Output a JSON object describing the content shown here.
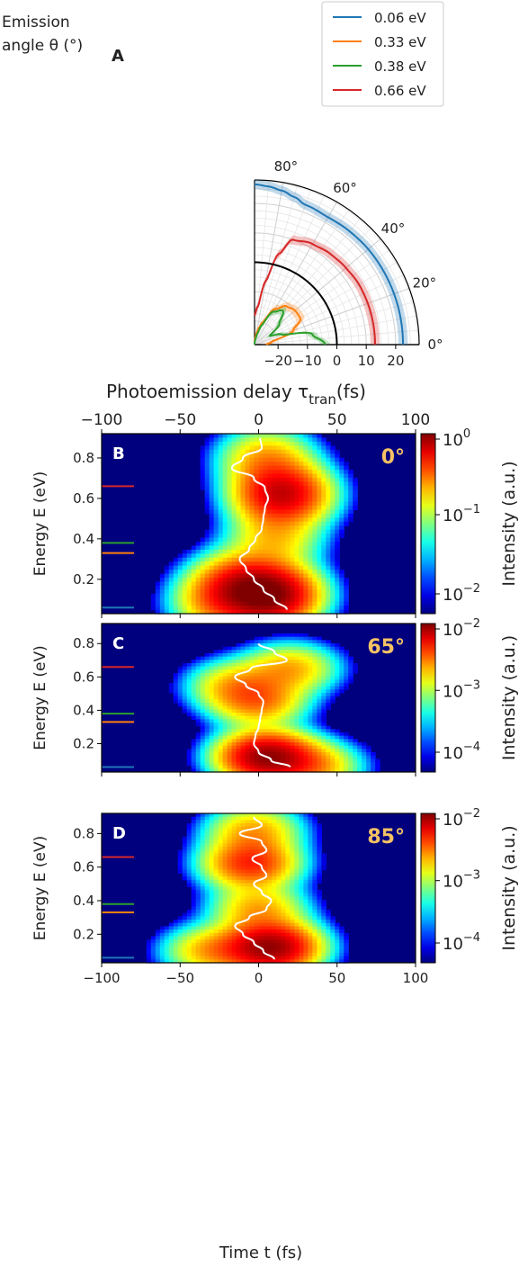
{
  "chart_data": [
    {
      "panel": "A",
      "type": "line",
      "coordinate_system": "polar",
      "xlabel_prefix": "Photoemission delay τ",
      "xlabel_sub": "tran",
      "xlabel_suffix": "(fs)",
      "angle_label_line1": "Emission",
      "angle_label_line2": "angle θ (°)",
      "radial_ticks": [
        "−20",
        "−10",
        "0",
        "10",
        "20"
      ],
      "angle_ticks": [
        "0°",
        "20°",
        "40°",
        "60°",
        "80°"
      ],
      "rlim": [
        -28,
        28
      ],
      "theta_range_deg": [
        0,
        90
      ],
      "grid": true,
      "legend_position": "top-right",
      "theta_deg": [
        0,
        10,
        20,
        30,
        40,
        50,
        60,
        70,
        75,
        80,
        85,
        90
      ],
      "series": [
        {
          "name": "0.06 eV",
          "color": "#1f77b4",
          "tau": [
            22.5,
            22.5,
            22.5,
            22.5,
            22.5,
            22.3,
            22.0,
            22.6,
            24.0,
            25.2,
            26.0,
            26.5
          ]
        },
        {
          "name": "0.33 eV",
          "color": "#ff7f0e",
          "tau": [
            -24,
            -22,
            -14,
            -10,
            -10,
            -11,
            -14,
            -20,
            -22,
            -24,
            -26,
            -27
          ]
        },
        {
          "name": "0.38 eV",
          "color": "#2ca02c",
          "tau": [
            -4,
            -8,
            -18,
            -22,
            -17,
            -13,
            -15,
            -21,
            -24,
            -26,
            -27,
            -28
          ]
        },
        {
          "name": "0.66 eV",
          "color": "#d62728",
          "tau": [
            13,
            13,
            13,
            13,
            12.6,
            12.2,
            11.5,
            10.0,
            4.0,
            -6.0,
            -15.0,
            -18.0
          ]
        },
        {
          "name": "",
          "color": "#000000",
          "tau": [
            0,
            0,
            0,
            0,
            0,
            0,
            0,
            0,
            0,
            0,
            0,
            0
          ]
        }
      ]
    },
    {
      "panel": "B",
      "type": "heatmap",
      "angle_label": "0°",
      "xlim": [
        -100,
        100
      ],
      "ylim": [
        0.03,
        0.92
      ],
      "ylabel": "Energy E (eV)",
      "colorbar_label": "Intensity (a.u.)",
      "colorbar_ticks": [
        {
          "base": "10",
          "exp": "0"
        },
        {
          "base": "10",
          "exp": "−1"
        },
        {
          "base": "10",
          "exp": "−2"
        }
      ],
      "x_ticks": [
        "−100",
        "−50",
        "0",
        "50",
        "100"
      ],
      "y_ticks": [
        "0.2",
        "0.4",
        "0.6",
        "0.8"
      ],
      "x_ticks_top": true,
      "energy_markers": [
        {
          "E": 0.06,
          "color": "#1f77b4"
        },
        {
          "E": 0.33,
          "color": "#ff7f0e"
        },
        {
          "E": 0.38,
          "color": "#2ca02c"
        },
        {
          "E": 0.66,
          "color": "#d62728"
        }
      ],
      "peaks": [
        {
          "t": 8,
          "E": 0.12,
          "amp": 1.0
        },
        {
          "t": -12,
          "E": 0.18,
          "amp": 0.5
        },
        {
          "t": 15,
          "E": 0.62,
          "amp": 0.8
        },
        {
          "t": -25,
          "E": 0.08,
          "amp": 0.3
        },
        {
          "t": 10,
          "E": 0.4,
          "amp": 0.25
        },
        {
          "t": 5,
          "E": 0.8,
          "amp": 0.3
        }
      ],
      "centroid": {
        "E": [
          0.05,
          0.1,
          0.15,
          0.2,
          0.25,
          0.3,
          0.35,
          0.4,
          0.45,
          0.5,
          0.55,
          0.6,
          0.65,
          0.7,
          0.75,
          0.8,
          0.85,
          0.9
        ],
        "t": [
          18,
          10,
          3,
          -3,
          -8,
          -12,
          -6,
          -2,
          2,
          3,
          4,
          6,
          4,
          -3,
          -17,
          -10,
          2,
          1
        ]
      }
    },
    {
      "panel": "C",
      "type": "heatmap",
      "angle_label": "65°",
      "xlim": [
        -100,
        100
      ],
      "ylim": [
        0.03,
        0.92
      ],
      "ylabel": "Energy E (eV)",
      "colorbar_label": "Intensity (a.u.)",
      "colorbar_ticks": [
        {
          "base": "10",
          "exp": "−2"
        },
        {
          "base": "10",
          "exp": "−3"
        },
        {
          "base": "10",
          "exp": "−4"
        }
      ],
      "x_ticks": [
        "−100",
        "−50",
        "0",
        "50",
        "100"
      ],
      "y_ticks": [
        "0.2",
        "0.4",
        "0.6",
        "0.8"
      ],
      "x_ticks_top": false,
      "energy_markers": [
        {
          "E": 0.06,
          "color": "#1f77b4"
        },
        {
          "E": 0.33,
          "color": "#ff7f0e"
        },
        {
          "E": 0.38,
          "color": "#2ca02c"
        },
        {
          "E": 0.66,
          "color": "#d62728"
        }
      ],
      "peaks": [
        {
          "t": 5,
          "E": 0.12,
          "amp": 1.0
        },
        {
          "t": 35,
          "E": 0.06,
          "amp": 0.3
        },
        {
          "t": 0,
          "E": 0.45,
          "amp": 0.35
        },
        {
          "t": 20,
          "E": 0.65,
          "amp": 0.3
        },
        {
          "t": -15,
          "E": 0.55,
          "amp": 0.25
        }
      ],
      "centroid": {
        "E": [
          0.06,
          0.1,
          0.15,
          0.2,
          0.25,
          0.3,
          0.35,
          0.4,
          0.45,
          0.5,
          0.55,
          0.6,
          0.65,
          0.7,
          0.75,
          0.8
        ],
        "t": [
          20,
          8,
          0,
          -3,
          -2,
          0,
          1,
          2,
          3,
          0,
          -8,
          -15,
          -5,
          18,
          10,
          0
        ]
      }
    },
    {
      "panel": "D",
      "type": "heatmap",
      "angle_label": "85°",
      "xlim": [
        -100,
        100
      ],
      "ylim": [
        0.03,
        0.92
      ],
      "ylabel": "Energy E (eV)",
      "xlabel": "Time t (fs)",
      "colorbar_label": "Intensity (a.u.)",
      "colorbar_ticks": [
        {
          "base": "10",
          "exp": "−2"
        },
        {
          "base": "10",
          "exp": "−3"
        },
        {
          "base": "10",
          "exp": "−4"
        }
      ],
      "x_ticks": [
        "−100",
        "−50",
        "0",
        "50",
        "100"
      ],
      "y_ticks": [
        "0.2",
        "0.4",
        "0.6",
        "0.8"
      ],
      "x_ticks_top": false,
      "energy_markers": [
        {
          "E": 0.06,
          "color": "#1f77b4"
        },
        {
          "E": 0.33,
          "color": "#ff7f0e"
        },
        {
          "E": 0.38,
          "color": "#2ca02c"
        },
        {
          "E": 0.66,
          "color": "#d62728"
        }
      ],
      "peaks": [
        {
          "t": 8,
          "E": 0.12,
          "amp": 1.0
        },
        {
          "t": -5,
          "E": 0.62,
          "amp": 0.55
        },
        {
          "t": -30,
          "E": 0.1,
          "amp": 0.3
        },
        {
          "t": 0,
          "E": 0.35,
          "amp": 0.3
        },
        {
          "t": -3,
          "E": 0.82,
          "amp": 0.3
        }
      ],
      "centroid": {
        "E": [
          0.05,
          0.1,
          0.15,
          0.2,
          0.25,
          0.3,
          0.35,
          0.4,
          0.45,
          0.5,
          0.55,
          0.6,
          0.65,
          0.7,
          0.75,
          0.8,
          0.85,
          0.9
        ],
        "t": [
          10,
          3,
          -3,
          -10,
          -15,
          -6,
          5,
          8,
          2,
          -3,
          5,
          2,
          -4,
          5,
          2,
          -12,
          2,
          -3
        ]
      }
    }
  ]
}
